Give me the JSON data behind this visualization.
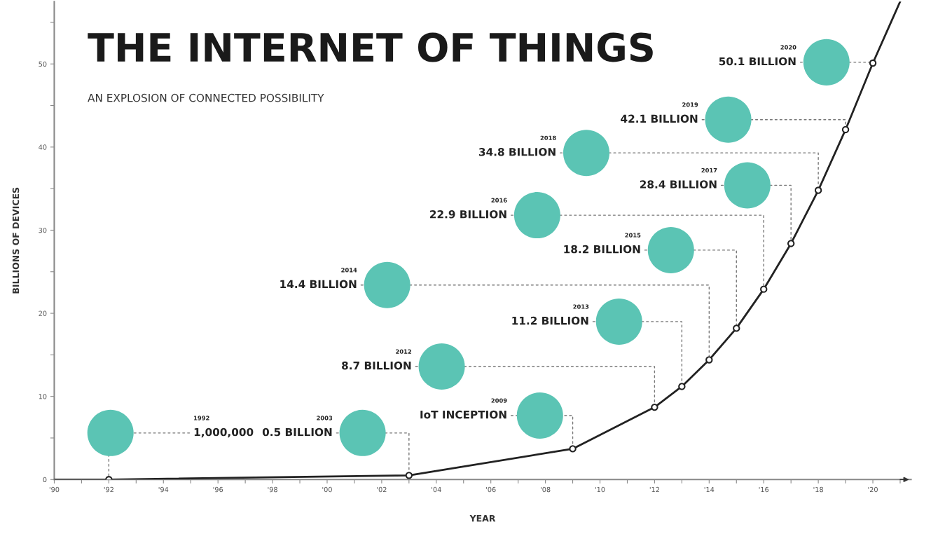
{
  "chart_data": {
    "type": "line",
    "title": "THE INTERNET OF THINGS",
    "subtitle": "AN EXPLOSION OF CONNECTED POSSIBILITY",
    "xlabel": "YEAR",
    "ylabel": "BILLIONS OF DEVICES",
    "x": [
      1990,
      1992,
      2003,
      2009,
      2012,
      2013,
      2014,
      2015,
      2016,
      2017,
      2018,
      2019,
      2020,
      2021
    ],
    "series": [
      {
        "color": "#222222",
        "values": [
          0,
          0.001,
          0.5,
          3.7,
          8.7,
          11.2,
          14.4,
          18.2,
          22.9,
          28.4,
          34.8,
          42.1,
          50.1,
          57.5
        ]
      }
    ],
    "xlim": [
      1990,
      2021.4
    ],
    "ylim": [
      0,
      57.5
    ],
    "xticks": [
      {
        "value": 1990,
        "label": "'90"
      },
      {
        "value": 1991,
        "label": null
      },
      {
        "value": 1992,
        "label": "'92"
      },
      {
        "value": 1993,
        "label": null
      },
      {
        "value": 1994,
        "label": "'94"
      },
      {
        "value": 1995,
        "label": null
      },
      {
        "value": 1996,
        "label": "'96"
      },
      {
        "value": 1997,
        "label": null
      },
      {
        "value": 1998,
        "label": "'98"
      },
      {
        "value": 1999,
        "label": null
      },
      {
        "value": 2000,
        "label": "'00"
      },
      {
        "value": 2001,
        "label": null
      },
      {
        "value": 2002,
        "label": "'02"
      },
      {
        "value": 2003,
        "label": null
      },
      {
        "value": 2004,
        "label": "'04"
      },
      {
        "value": 2005,
        "label": null
      },
      {
        "value": 2006,
        "label": "'06"
      },
      {
        "value": 2007,
        "label": null
      },
      {
        "value": 2008,
        "label": "'08"
      },
      {
        "value": 2009,
        "label": null
      },
      {
        "value": 2010,
        "label": "'10"
      },
      {
        "value": 2011,
        "label": null
      },
      {
        "value": 2012,
        "label": "'12"
      },
      {
        "value": 2013,
        "label": null
      },
      {
        "value": 2014,
        "label": "'14"
      },
      {
        "value": 2015,
        "label": null
      },
      {
        "value": 2016,
        "label": "'16"
      },
      {
        "value": 2017,
        "label": null
      },
      {
        "value": 2018,
        "label": "'18"
      },
      {
        "value": 2019,
        "label": null
      },
      {
        "value": 2020,
        "label": "'20"
      },
      {
        "value": 2021,
        "label": null
      }
    ],
    "yticks": [
      0,
      {
        "value": 5,
        "label": null
      },
      10,
      {
        "value": 15,
        "label": null
      },
      20,
      {
        "value": 25,
        "label": null
      },
      30,
      {
        "value": 35,
        "label": null
      },
      40,
      {
        "value": 45,
        "label": null
      },
      50,
      {
        "value": 55,
        "label": null
      }
    ],
    "grid": false,
    "legend": false,
    "marker": "circle",
    "line_style": "solid",
    "annotations": [
      "1992",
      {
        "text": "1,000,000",
        "x": 1992,
        "y": 0.001
      },
      "2003",
      {
        "text": "0.5 BILLION",
        "x": 2003,
        "y": 0.5
      },
      "2009",
      {
        "text": "IoT INCEPTION",
        "x": 2009,
        "y": 3.7
      },
      "2012",
      {
        "text": "8.7 BILLION",
        "x": 2012,
        "y": 8.7
      },
      "2013",
      {
        "text": "11.2 BILLION",
        "x": 2013,
        "y": 11.2
      },
      "2014",
      {
        "text": "14.4 BILLION",
        "x": 2014,
        "y": 14.4
      },
      "2015",
      {
        "text": "18.2 BILLION",
        "x": 2015,
        "y": 18.2
      },
      "2016",
      {
        "text": "22.9 BILLION",
        "x": 2016,
        "y": 22.9
      },
      "2017",
      {
        "text": "28.4 BILLION",
        "x": 2017,
        "y": 28.4
      },
      "2018",
      {
        "text": "34.8 BILLION",
        "x": 2018,
        "y": 34.8
      },
      "2019",
      {
        "text": "42.1 BILLION",
        "x": 2019,
        "y": 42.1
      },
      "2020",
      {
        "text": "50.1 BILLION",
        "x": 2020,
        "y": 50.1
      }
    ]
  }
}
